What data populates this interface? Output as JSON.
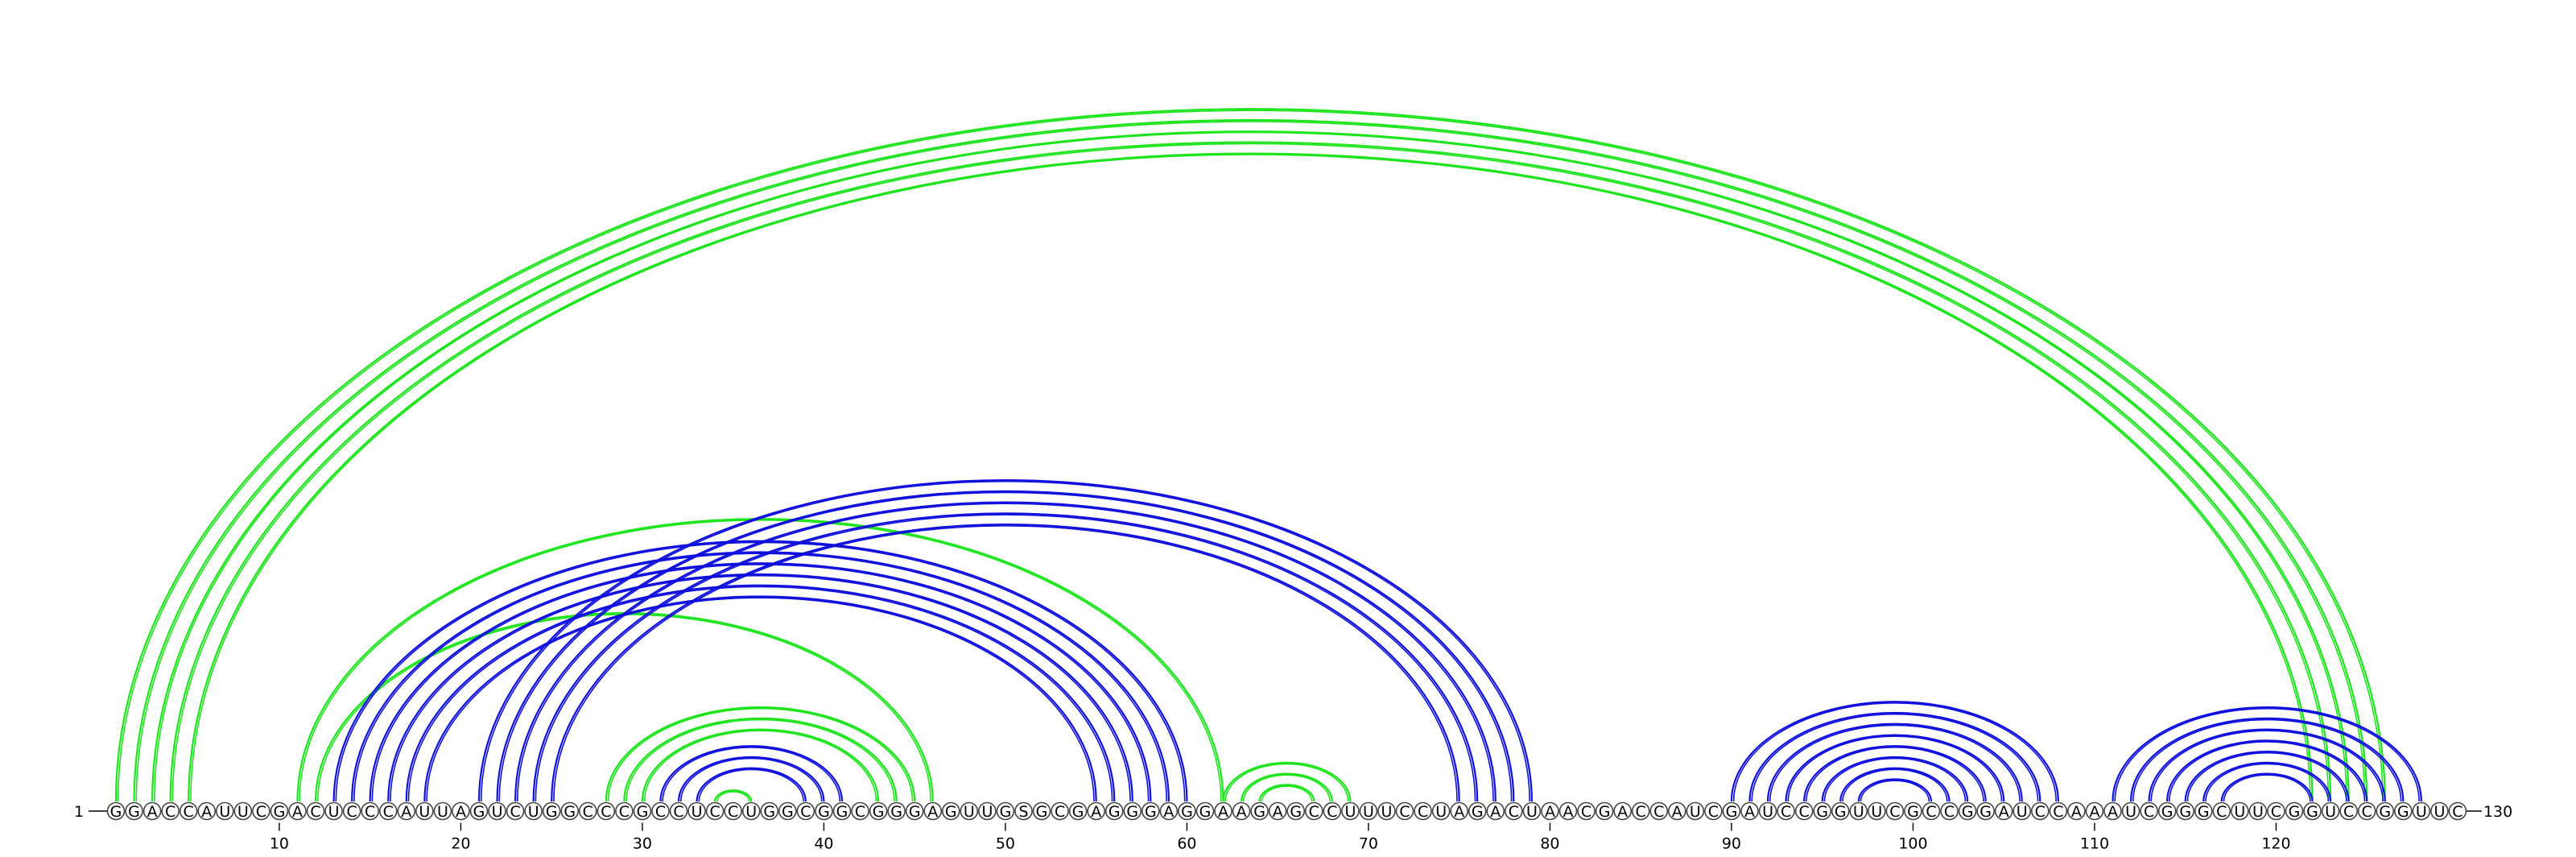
{
  "sequence": "GGACCAUUCGACUCCCAUUAGUCUGGCCCGCCUCCUGGCGGCGGGAGUUGSGCGAGGGAGGAAGAGCCUUUCCUAGACUAACGACCAUCGAUCCGGUUCGCCGGAUCCAAAUCGGGCUUCGGUCCGGUUC",
  "start_label": "1",
  "end_label": "130",
  "axis_ticks": [
    {
      "position": 10,
      "label": "10"
    },
    {
      "position": 20,
      "label": "20"
    },
    {
      "position": 30,
      "label": "30"
    },
    {
      "position": 40,
      "label": "40"
    },
    {
      "position": 50,
      "label": "50"
    },
    {
      "position": 60,
      "label": "60"
    },
    {
      "position": 70,
      "label": "70"
    },
    {
      "position": 80,
      "label": "80"
    },
    {
      "position": 90,
      "label": "90"
    },
    {
      "position": 100,
      "label": "100"
    },
    {
      "position": 110,
      "label": "110"
    },
    {
      "position": 120,
      "label": "120"
    }
  ],
  "colors": {
    "green": "#1ee41e",
    "blue": "#1010dc"
  },
  "pairs": {
    "green_helix_outer": [
      [
        1,
        126
      ],
      [
        2,
        125
      ],
      [
        3,
        124
      ],
      [
        4,
        123
      ],
      [
        5,
        122
      ]
    ],
    "green_helix_11_46": [
      [
        11,
        62
      ]
    ],
    "green_helix_12_46": [
      [
        12,
        46
      ]
    ],
    "green_helix_28_45": [
      [
        28,
        45
      ],
      [
        29,
        44
      ],
      [
        30,
        43
      ]
    ],
    "green_helix_35": [
      [
        34,
        36
      ]
    ],
    "green_helix_62_69": [
      [
        62,
        69
      ],
      [
        63,
        68
      ],
      [
        64,
        67
      ]
    ],
    "blue_helix_13_59": [
      [
        13,
        60
      ],
      [
        14,
        59
      ],
      [
        15,
        58
      ],
      [
        16,
        57
      ],
      [
        17,
        56
      ],
      [
        18,
        55
      ]
    ],
    "blue_helix_21_79": [
      [
        21,
        79
      ],
      [
        22,
        78
      ],
      [
        23,
        77
      ],
      [
        24,
        76
      ],
      [
        25,
        75
      ]
    ],
    "blue_helix_31_41": [
      [
        31,
        41
      ],
      [
        32,
        40
      ],
      [
        33,
        39
      ]
    ],
    "blue_helix_90_108": [
      [
        90,
        108
      ],
      [
        91,
        107
      ],
      [
        92,
        106
      ],
      [
        93,
        105
      ],
      [
        94,
        104
      ],
      [
        95,
        103
      ],
      [
        96,
        102
      ],
      [
        97,
        101
      ]
    ],
    "blue_helix_111_128": [
      [
        111,
        128
      ],
      [
        112,
        127
      ],
      [
        113,
        126
      ],
      [
        114,
        125
      ],
      [
        115,
        124
      ],
      [
        116,
        123
      ],
      [
        117,
        122
      ]
    ]
  }
}
